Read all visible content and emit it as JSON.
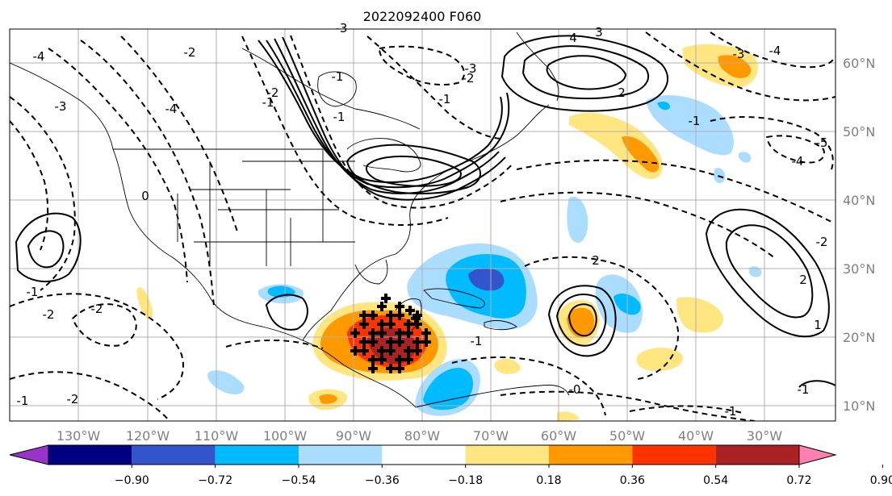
{
  "title": "2022092400 F060",
  "map": {
    "lon_labels": [
      "130°W",
      "120°W",
      "110°W",
      "100°W",
      "90°W",
      "80°W",
      "70°W",
      "60°W",
      "50°W",
      "40°W",
      "30°W"
    ],
    "lat_labels": [
      "60°N",
      "50°N",
      "40°N",
      "30°N",
      "20°N",
      "10°N"
    ],
    "contour_labels": [
      "-4",
      "-3",
      "-4",
      "-2",
      "-1",
      "3",
      "-3",
      "4",
      "-3",
      "-2",
      "-4",
      "-5",
      "-4",
      "-3",
      "-2",
      "-2",
      "2",
      "-1",
      "-1",
      "0",
      "-2",
      "2",
      "-1",
      "-2",
      "-1",
      "-1",
      "-2",
      "-1",
      "-0",
      "-1",
      "1",
      "-1",
      "2",
      "-1"
    ]
  },
  "colorbar": {
    "tick_labels": [
      "−0.90",
      "−0.72",
      "−0.54",
      "−0.36",
      "−0.18",
      "0.18",
      "0.36",
      "0.54",
      "0.72",
      "0.90"
    ],
    "colors": [
      "#9933cc",
      "#000080",
      "#3355cc",
      "#00bbff",
      "#aaddff",
      "#ffffff",
      "#ffe680",
      "#ff9900",
      "#ff3300",
      "#aa2222",
      "#ff80b0"
    ]
  }
}
